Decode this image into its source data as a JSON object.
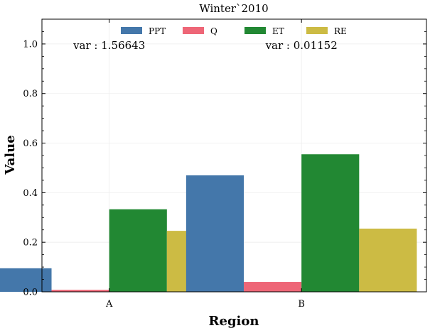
{
  "chart_data": {
    "type": "bar",
    "title": "Winter`2010",
    "xlabel": "Region",
    "ylabel": "Value",
    "categories": [
      "A",
      "B"
    ],
    "ylim": [
      0,
      1.1
    ],
    "yticks": [
      0.0,
      0.2,
      0.4,
      0.6,
      0.8,
      1.0
    ],
    "ytick_labels": [
      "0.0",
      "0.2",
      "0.4",
      "0.6",
      "0.8",
      "1.0"
    ],
    "grid": true,
    "legend_position": "top-center",
    "series": [
      {
        "name": "PPT",
        "color": "#4477aa",
        "values": [
          0.095,
          0.47
        ]
      },
      {
        "name": "Q",
        "color": "#ee6677",
        "values": [
          0.008,
          0.04
        ]
      },
      {
        "name": "ET",
        "color": "#228833",
        "values": [
          0.333,
          0.555
        ]
      },
      {
        "name": "RE",
        "color": "#ccbb44",
        "values": [
          0.246,
          0.255
        ]
      }
    ],
    "annotations": [
      {
        "text": "var : 1.56643",
        "category": "A"
      },
      {
        "text": "var : 0.01152",
        "category": "B"
      }
    ]
  }
}
